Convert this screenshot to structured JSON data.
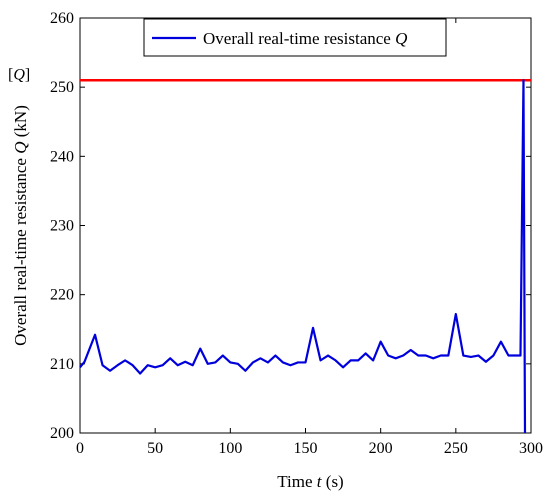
{
  "chart_data": {
    "type": "line",
    "title": "",
    "xlabel": {
      "text": "Time ",
      "var": "t",
      "unit": " (s)"
    },
    "ylabel": {
      "text": "Overall real-time resistance ",
      "var": "Q",
      "unit": " (kN)"
    },
    "xlim": [
      0,
      300
    ],
    "ylim": [
      200,
      260
    ],
    "xticks": [
      0,
      50,
      100,
      150,
      200,
      250,
      300
    ],
    "yticks": [
      200,
      210,
      220,
      230,
      240,
      250,
      260
    ],
    "grid": false,
    "legend": {
      "position": "top-center",
      "text": "Overall real-time resistance ",
      "var": "Q"
    },
    "reference_line": {
      "label_open": "[",
      "label_var": "Q",
      "label_close": "]",
      "value": 251,
      "color": "#ff0000"
    },
    "series": [
      {
        "name": "Overall real-time resistance Q",
        "color": "#0000dd",
        "x": [
          0,
          3,
          10,
          15,
          20,
          25,
          30,
          35,
          40,
          45,
          50,
          55,
          60,
          65,
          70,
          75,
          80,
          85,
          90,
          95,
          100,
          105,
          110,
          115,
          120,
          125,
          130,
          135,
          140,
          145,
          150,
          155,
          160,
          165,
          170,
          175,
          180,
          185,
          190,
          195,
          200,
          205,
          210,
          215,
          220,
          225,
          230,
          235,
          240,
          245,
          250,
          255,
          260,
          265,
          270,
          275,
          280,
          285,
          290,
          293,
          295,
          296
        ],
        "y": [
          209.5,
          210.3,
          214.2,
          209.8,
          209.0,
          209.8,
          210.5,
          209.8,
          208.6,
          209.8,
          209.5,
          209.8,
          210.8,
          209.8,
          210.3,
          209.8,
          212.2,
          210.0,
          210.2,
          211.2,
          210.2,
          210.0,
          209.0,
          210.2,
          210.8,
          210.2,
          211.2,
          210.2,
          209.8,
          210.2,
          210.2,
          215.2,
          210.5,
          211.2,
          210.5,
          209.5,
          210.5,
          210.5,
          211.5,
          210.5,
          213.2,
          211.2,
          210.8,
          211.2,
          212.0,
          211.2,
          211.2,
          210.8,
          211.2,
          211.2,
          217.2,
          211.2,
          211.0,
          211.2,
          210.3,
          211.2,
          213.2,
          211.2,
          211.2,
          211.2,
          251.0,
          200.0
        ]
      }
    ]
  }
}
